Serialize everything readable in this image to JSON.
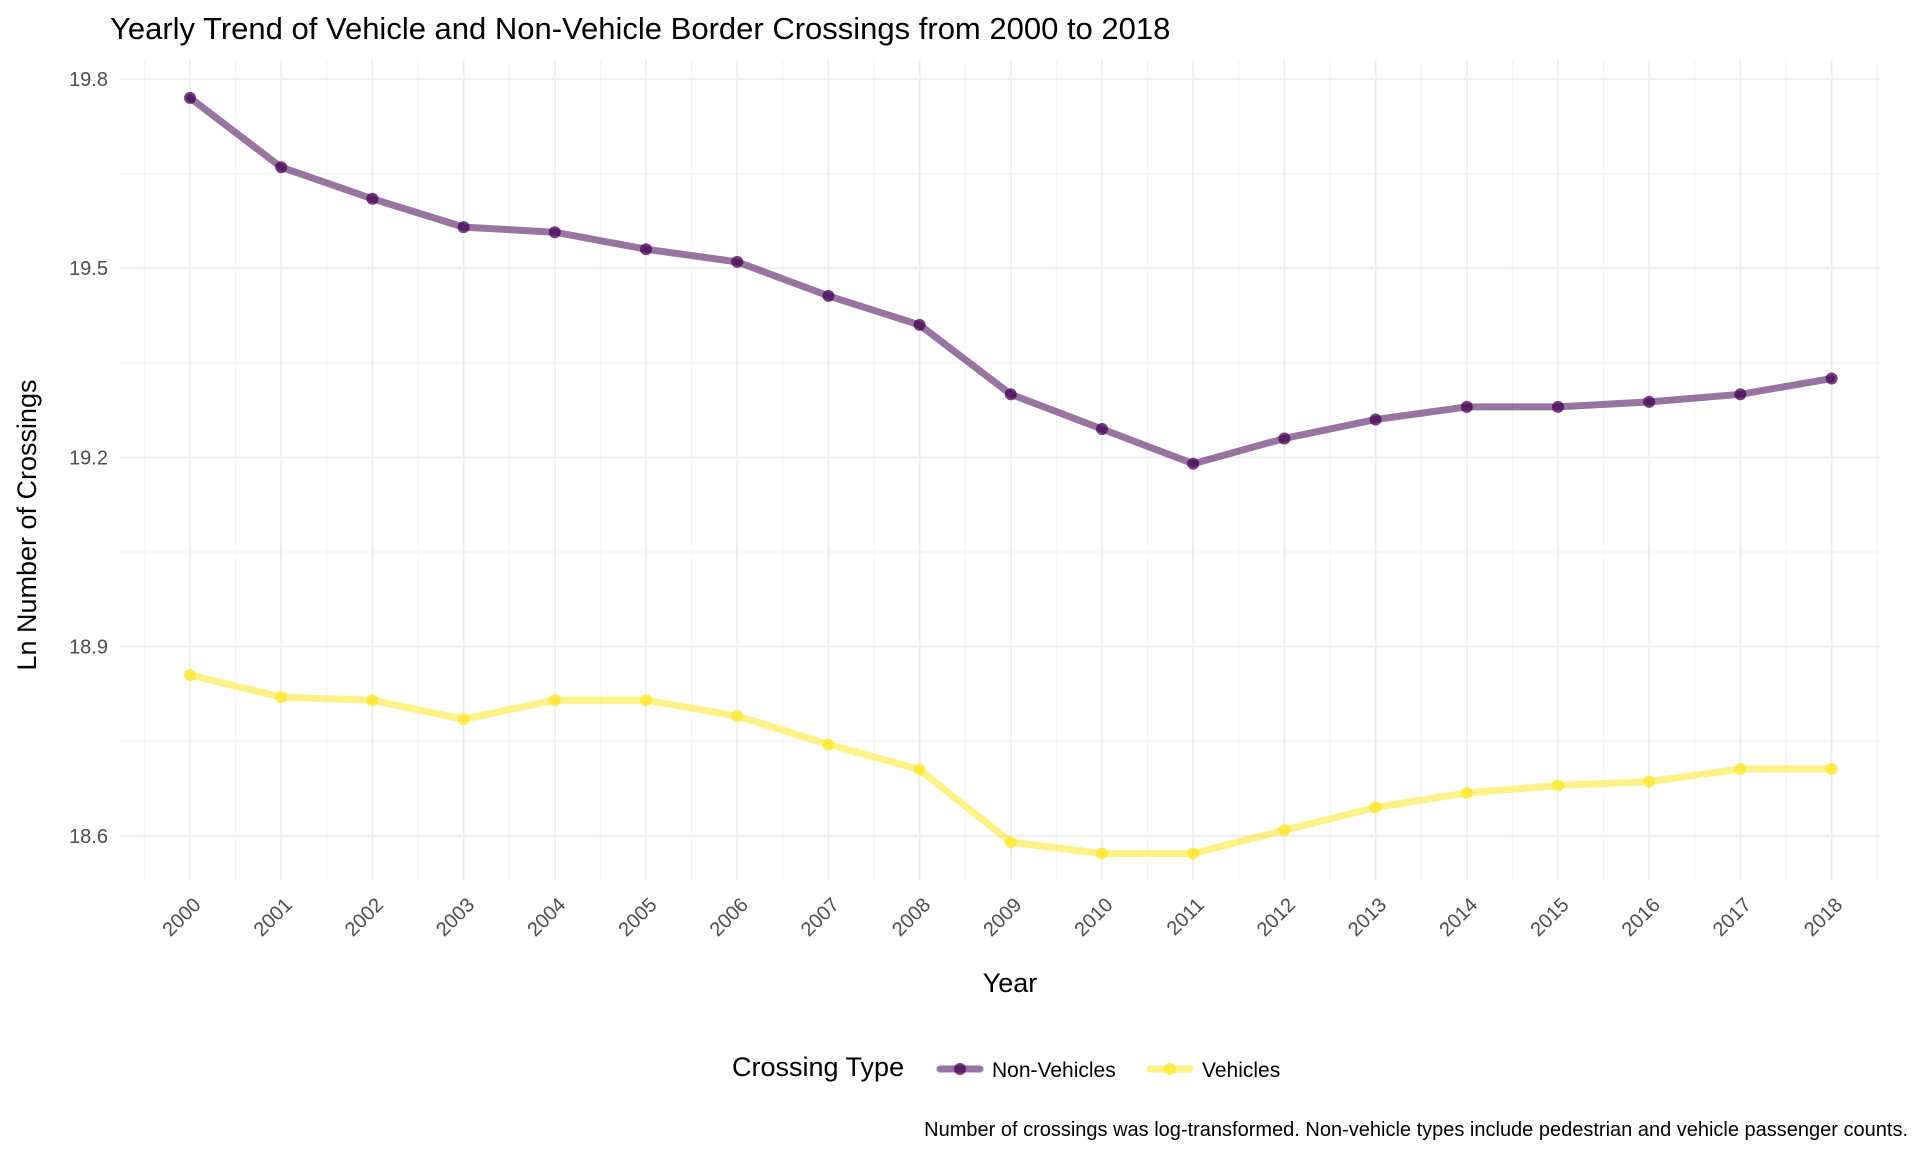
{
  "chart_data": {
    "type": "line",
    "title": "Yearly Trend of Vehicle and Non-Vehicle Border Crossings from 2000 to 2018",
    "xlabel": "Year",
    "ylabel": "Ln Number of Crossings",
    "caption": "Number of crossings was log-transformed. Non-vehicle types include pedestrian and vehicle passenger counts.",
    "categories": [
      "2000",
      "2001",
      "2002",
      "2003",
      "2004",
      "2005",
      "2006",
      "2007",
      "2008",
      "2009",
      "2010",
      "2011",
      "2012",
      "2013",
      "2014",
      "2015",
      "2016",
      "2017",
      "2018"
    ],
    "y_ticks": [
      "19.8",
      "19.5",
      "19.2",
      "18.9",
      "18.6"
    ],
    "ylim": [
      18.53,
      19.83
    ],
    "grid": true,
    "legend": {
      "title": "Crossing Type",
      "position": "bottom"
    },
    "series": [
      {
        "name": "Non-Vehicles",
        "color": "#440154",
        "values": [
          19.77,
          19.66,
          19.61,
          19.565,
          19.557,
          19.53,
          19.51,
          19.456,
          19.41,
          19.3,
          19.245,
          19.19,
          19.23,
          19.26,
          19.28,
          19.28,
          19.288,
          19.3,
          19.325
        ]
      },
      {
        "name": "Vehicles",
        "color": "#FDE725",
        "values": [
          18.855,
          18.82,
          18.815,
          18.785,
          18.815,
          18.815,
          18.79,
          18.745,
          18.705,
          18.59,
          18.572,
          18.572,
          18.609,
          18.645,
          18.668,
          18.68,
          18.686,
          18.706,
          18.706
        ]
      }
    ]
  }
}
